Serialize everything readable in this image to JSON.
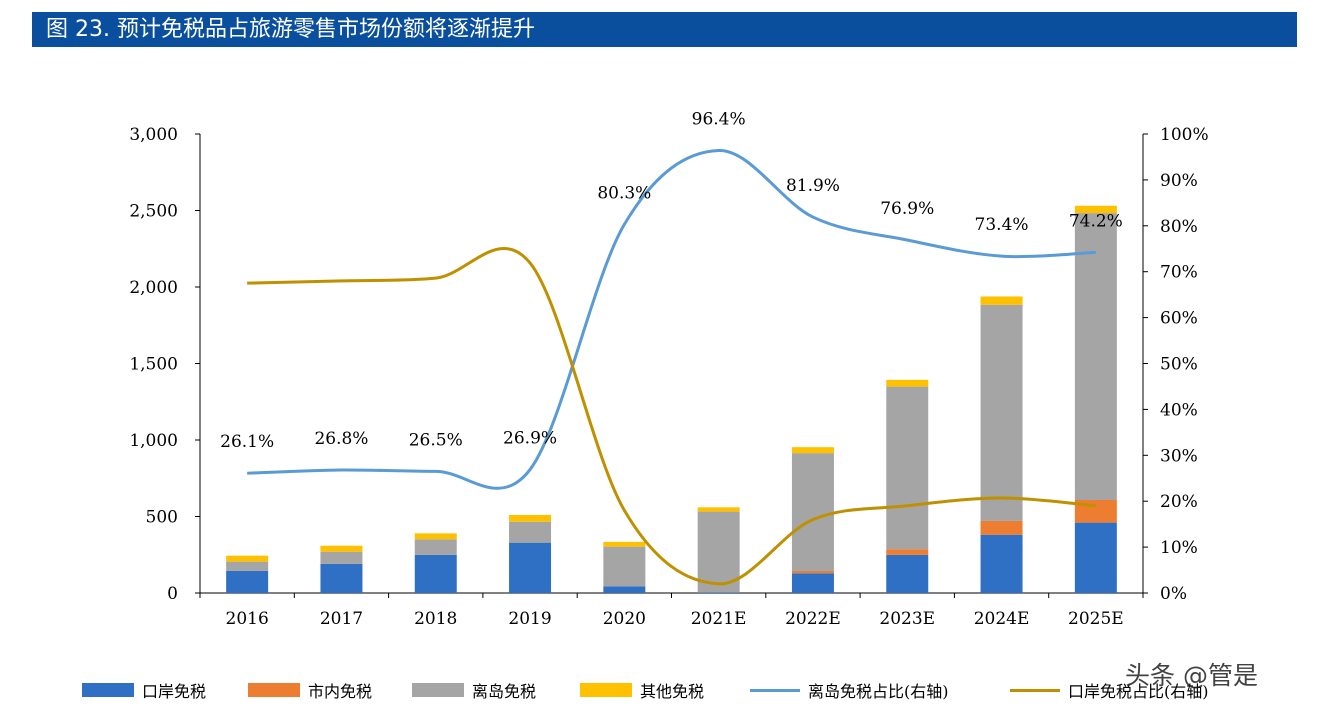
{
  "title": "图 23. 预计免税品占旅游零售市场份额将逐渐提升",
  "watermark": "头条 @管是",
  "chart_data": {
    "type": "bar",
    "categories": [
      "2016",
      "2017",
      "2018",
      "2019",
      "2020",
      "2021E",
      "2022E",
      "2023E",
      "2024E",
      "2025E"
    ],
    "left_axis": {
      "range": [
        0,
        3000
      ],
      "ticks": [
        "0",
        "500",
        "1,000",
        "1,500",
        "2,000",
        "2,500",
        "3,000"
      ]
    },
    "right_axis": {
      "range": [
        0,
        100
      ],
      "ticks": [
        "0%",
        "10%",
        "20%",
        "30%",
        "40%",
        "50%",
        "60%",
        "70%",
        "80%",
        "90%",
        "100%"
      ]
    },
    "grid": false,
    "legend_position": "bottom",
    "series": [
      {
        "name": "口岸免税",
        "type": "bar",
        "color": "#3070C4",
        "values": [
          144,
          190,
          249,
          329,
          44,
          5,
          129,
          249,
          381,
          460
        ]
      },
      {
        "name": "市内免税",
        "type": "bar",
        "color": "#ED7D31",
        "values": [
          0,
          0,
          0,
          0,
          0,
          0,
          15,
          37,
          90,
          148
        ]
      },
      {
        "name": "离岛免税",
        "type": "bar",
        "color": "#A5A5A5",
        "values": [
          61,
          80,
          102,
          137,
          259,
          527,
          770,
          1063,
          1413,
          1875
        ]
      },
      {
        "name": "其他免税",
        "type": "bar",
        "color": "#FFC000",
        "values": [
          39,
          39,
          39,
          44,
          31,
          28,
          39,
          44,
          54,
          48
        ]
      },
      {
        "name": "离岛免税占比(右轴)",
        "type": "line",
        "axis": "right",
        "color": "#5B9BD5",
        "values": [
          26.1,
          26.8,
          26.5,
          26.9,
          80.3,
          96.4,
          81.9,
          76.9,
          73.4,
          74.2
        ],
        "labels": [
          "26.1%",
          "26.8%",
          "26.5%",
          "26.9%",
          "80.3%",
          "96.4%",
          "81.9%",
          "76.9%",
          "73.4%",
          "74.2%"
        ]
      },
      {
        "name": "口岸免税占比(右轴)",
        "type": "line",
        "axis": "right",
        "color": "#BF9000",
        "values": [
          67.5,
          68,
          68.6,
          71.9,
          18,
          2,
          16,
          19,
          20.7,
          19
        ]
      }
    ]
  }
}
